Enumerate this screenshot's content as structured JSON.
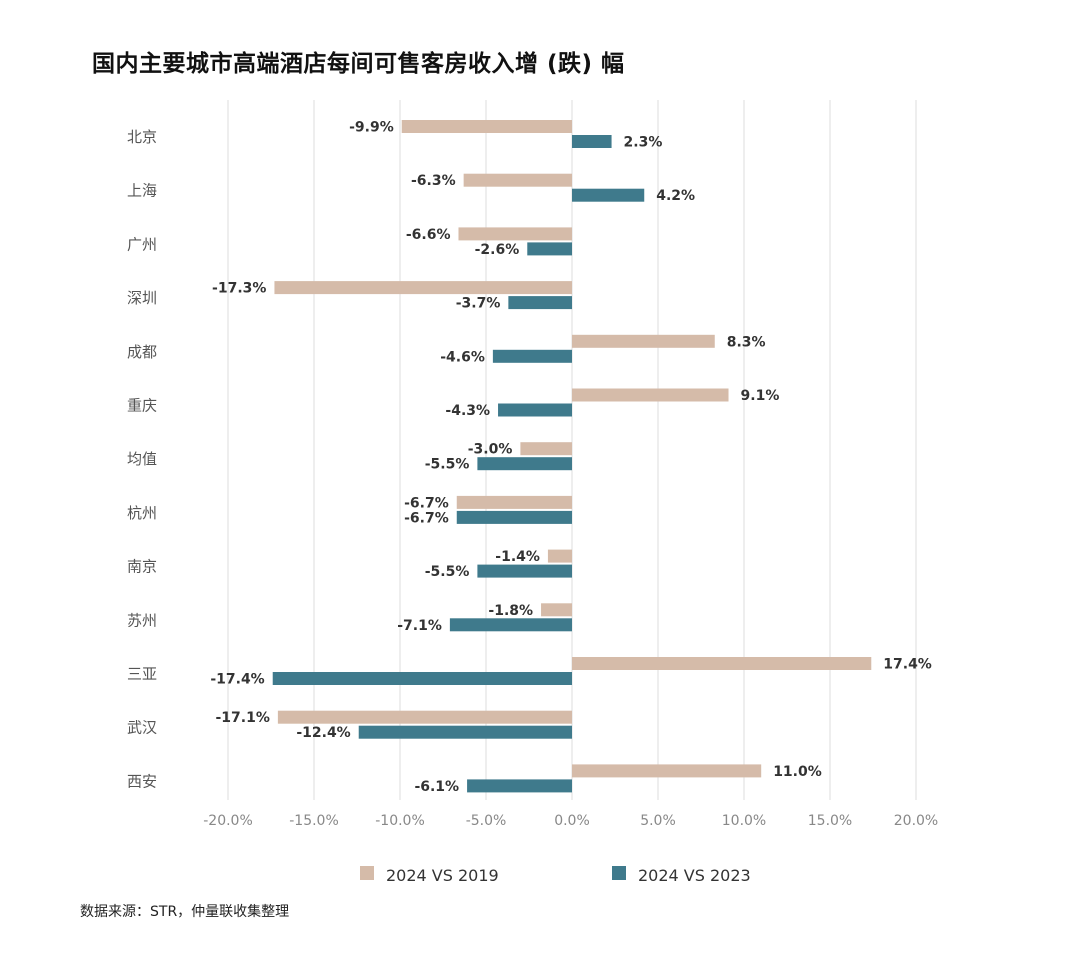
{
  "title": "国内主要城市高端酒店每间可售客房收入增 (跌) 幅",
  "source": "数据来源：STR，仲量联收集整理",
  "colors": {
    "s2019": "#D5BBA9",
    "s2023": "#3F7A8C",
    "grid": "#DDDDDD",
    "text": "#333333",
    "tick": "#888888"
  },
  "chart_data": {
    "type": "bar",
    "orientation": "horizontal",
    "categories": [
      "北京",
      "上海",
      "广州",
      "深圳",
      "成都",
      "重庆",
      "均值",
      "杭州",
      "南京",
      "苏州",
      "三亚",
      "武汉",
      "西安"
    ],
    "series": [
      {
        "name": "2024 VS 2019",
        "values": [
          -9.9,
          -6.3,
          -6.6,
          -17.3,
          8.3,
          9.1,
          -3.0,
          -6.7,
          -1.4,
          -1.8,
          17.4,
          -17.1,
          11.0
        ],
        "labels": [
          "-9.9%",
          "-6.3%",
          "-6.6%",
          "-17.3%",
          "8.3%",
          "9.1%",
          "-3.0%",
          "-6.7%",
          "-1.4%",
          "-1.8%",
          "17.4%",
          "-17.1%",
          "11.0%"
        ]
      },
      {
        "name": "2024 VS 2023",
        "values": [
          2.3,
          4.2,
          -2.6,
          -3.7,
          -4.6,
          -4.3,
          -5.5,
          -6.7,
          -5.5,
          -7.1,
          -17.4,
          -12.4,
          -6.1
        ],
        "labels": [
          "2.3%",
          "4.2%",
          "-2.6%",
          "-3.7%",
          "-4.6%",
          "-4.3%",
          "-5.5%",
          "-6.7%",
          "-5.5%",
          "-7.1%",
          "-17.4%",
          "-12.4%",
          "-6.1%"
        ]
      }
    ],
    "xlim": [
      -20,
      20
    ],
    "xticks": [
      -20,
      -15,
      -10,
      -5,
      0,
      5,
      10,
      15,
      20
    ],
    "xtick_labels": [
      "-20.0%",
      "-15.0%",
      "-10.0%",
      "-5.0%",
      "0.0%",
      "5.0%",
      "10.0%",
      "15.0%",
      "20.0%"
    ],
    "grid": true,
    "legend": "bottom"
  }
}
